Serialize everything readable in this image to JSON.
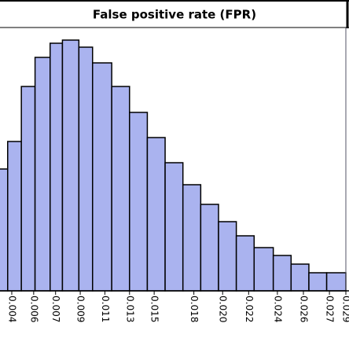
{
  "chart_data": {
    "type": "histogram",
    "title": "False positive rate (FPR)",
    "bins": [
      0.0031,
      0.0039,
      0.0049,
      0.0059,
      0.007,
      0.0079,
      0.0091,
      0.0101,
      0.0115,
      0.0128,
      0.0141,
      0.0154,
      0.0167,
      0.018,
      0.0193,
      0.0206,
      0.0219,
      0.0233,
      0.0246,
      0.0259,
      0.0272,
      0.0286
    ],
    "values": [
      155,
      190,
      260,
      297,
      315,
      319,
      310,
      290,
      260,
      227,
      195,
      163,
      135,
      110,
      88,
      70,
      55,
      45,
      34,
      23,
      23
    ],
    "color": "#aab3ef",
    "xlim": [
      0.00334,
      0.02883
    ],
    "ylim": [
      0,
      340
    ],
    "xticks": [
      {
        "value": 0.0042,
        "label": "0.004"
      },
      {
        "value": 0.0058,
        "label": "0.006"
      },
      {
        "value": 0.0074,
        "label": "0.007"
      },
      {
        "value": 0.0092,
        "label": "0.009"
      },
      {
        "value": 0.011,
        "label": "0.011"
      },
      {
        "value": 0.0128,
        "label": "0.013"
      },
      {
        "value": 0.0146,
        "label": "0.015"
      },
      {
        "value": 0.0175,
        "label": "0.018"
      },
      {
        "value": 0.0196,
        "label": "0.020"
      },
      {
        "value": 0.0215,
        "label": "0.022"
      },
      {
        "value": 0.0236,
        "label": "0.024"
      },
      {
        "value": 0.0255,
        "label": "0.026"
      },
      {
        "value": 0.0274,
        "label": "0.027"
      },
      {
        "value": 0.0286,
        "label": "0.029"
      }
    ],
    "vline": 0.0286
  }
}
